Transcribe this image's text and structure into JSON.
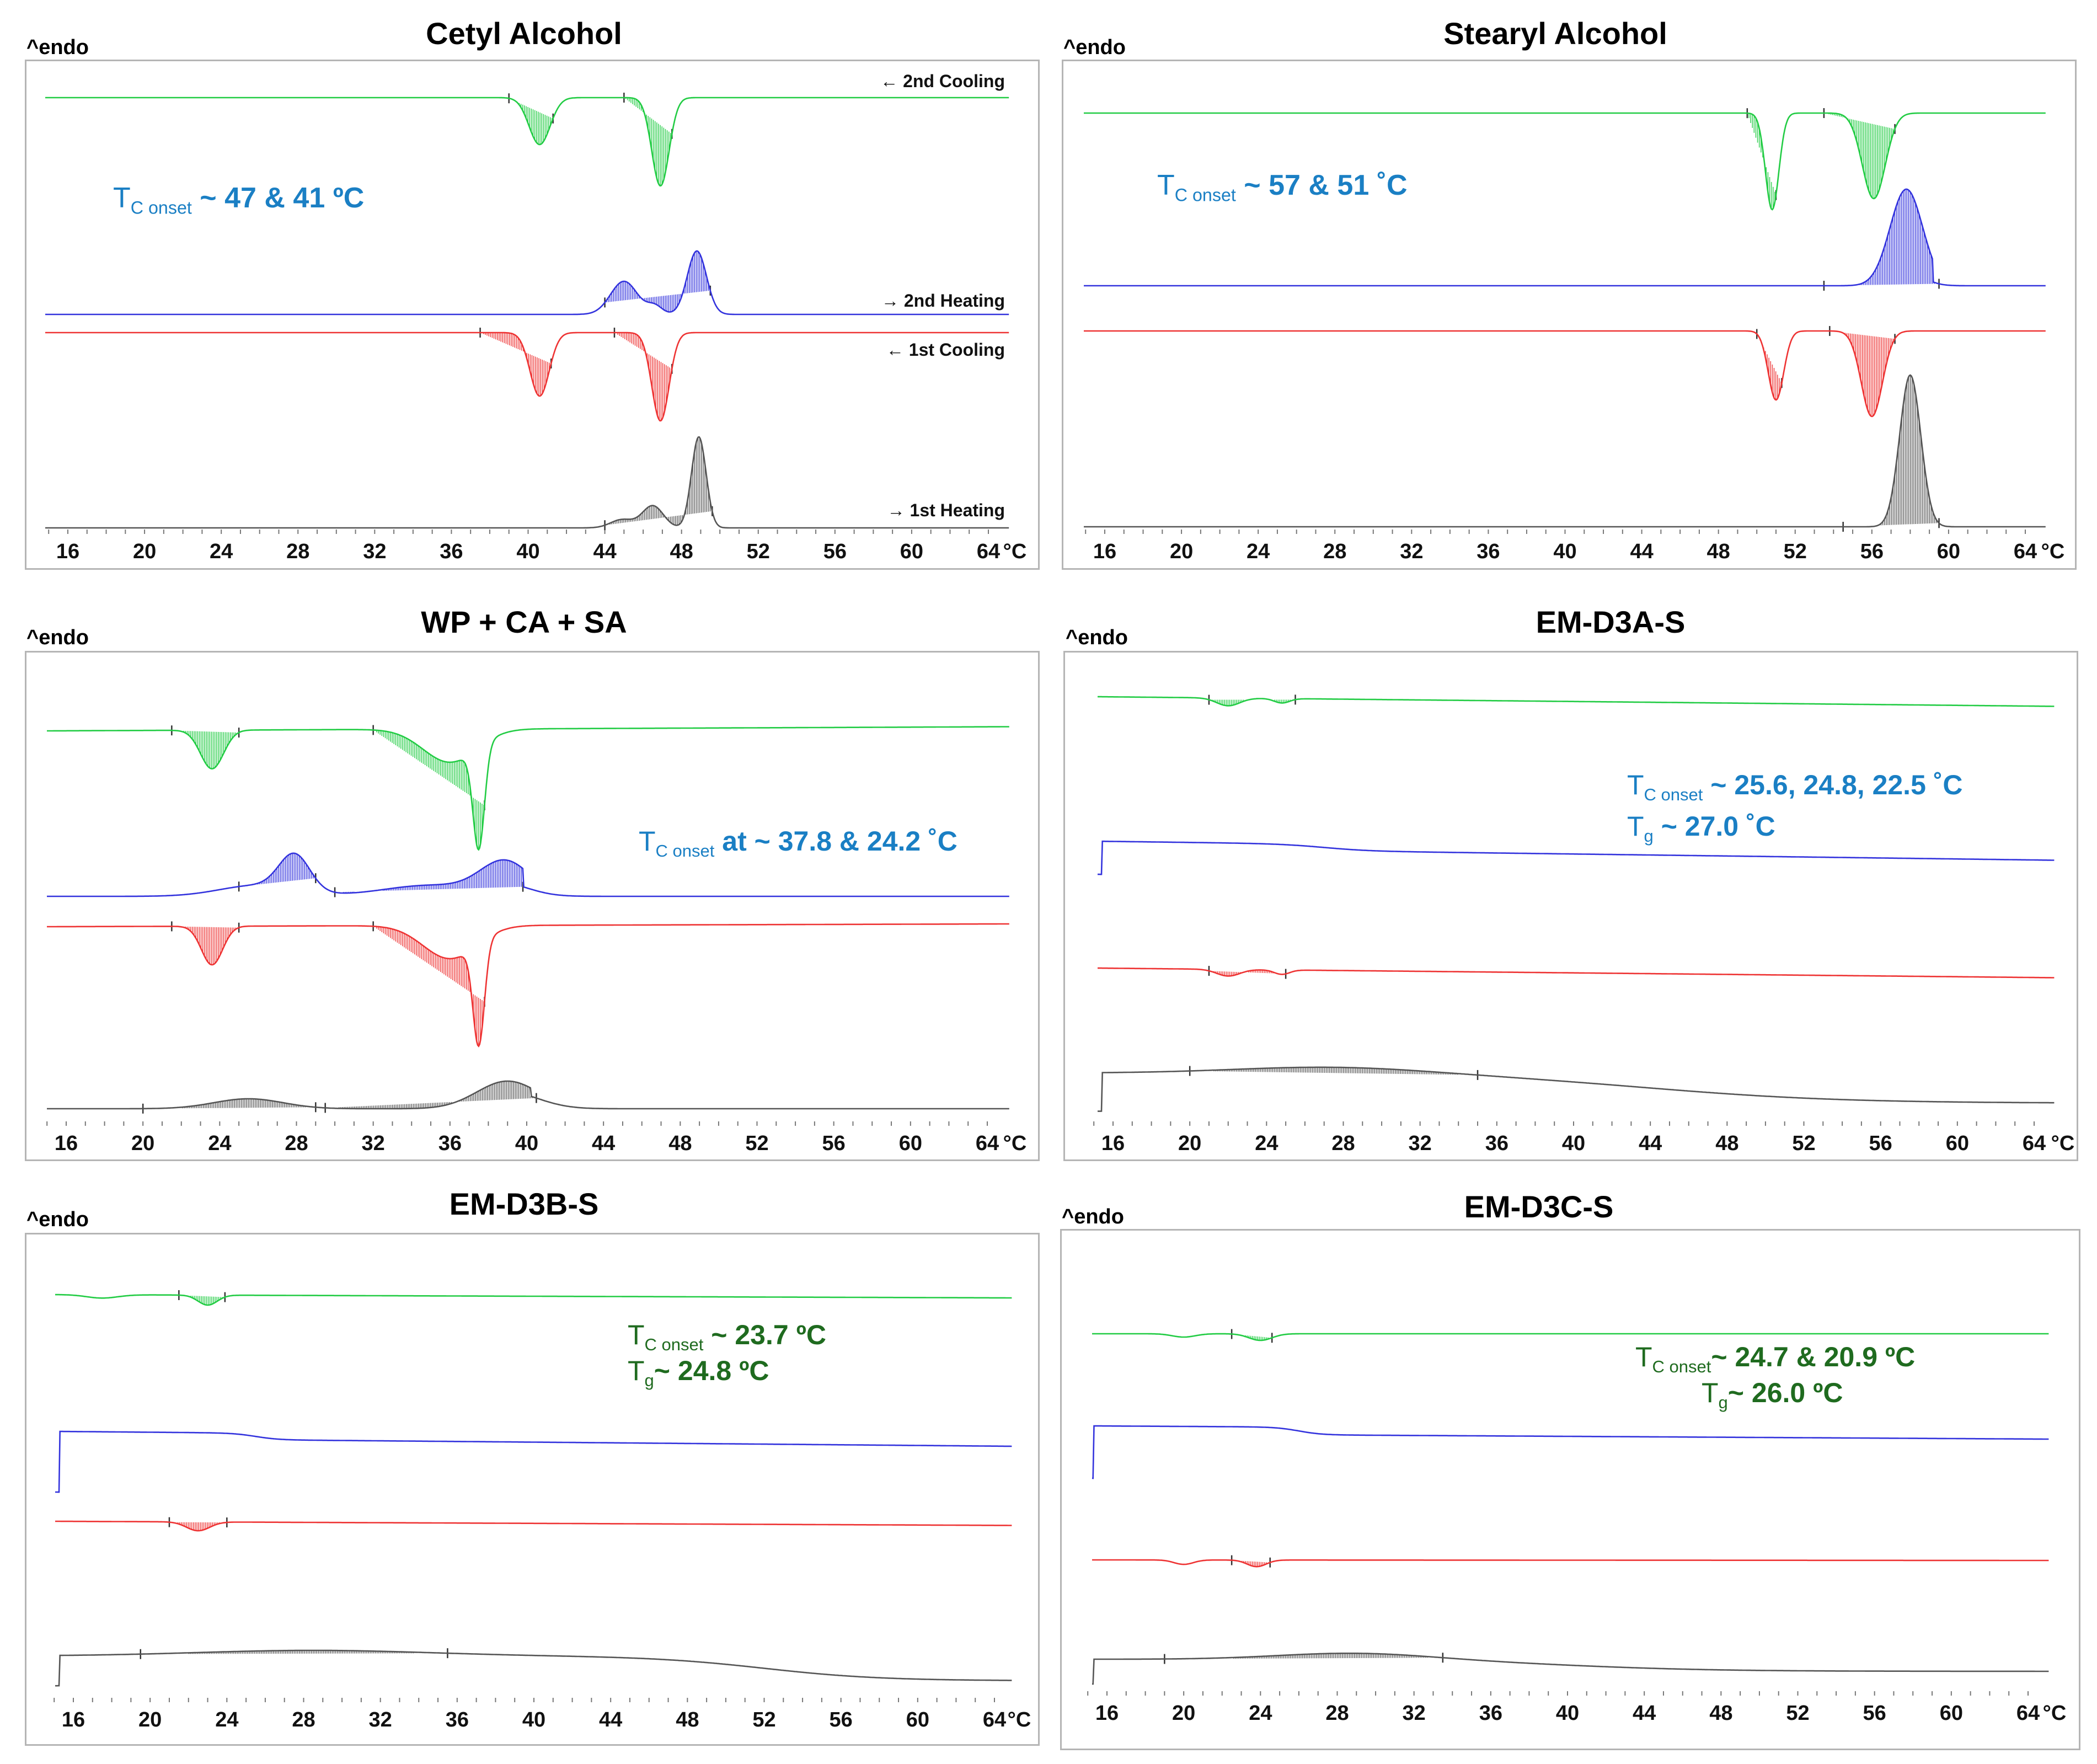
{
  "endo_label": "^endo",
  "unit": "°C",
  "colors": {
    "first_heating": "#555555",
    "first_cooling": "#ee3333",
    "second_heating": "#3333dd",
    "second_cooling": "#22cc44",
    "annotation_blue": "#1a7fc4",
    "annotation_green": "#1f6b1f"
  },
  "curve_labels": {
    "second_cooling": "2nd Cooling",
    "second_heating": "2nd Heating",
    "first_cooling": "1st Cooling",
    "first_heating": "1st Heating"
  },
  "chart_data": [
    {
      "type": "line",
      "title": "Cetyl Alcohol",
      "xlabel": "°C",
      "ylabel": "^endo",
      "xlim": [
        15,
        65
      ],
      "x_ticks": [
        16,
        20,
        24,
        28,
        32,
        36,
        40,
        44,
        48,
        52,
        56,
        60,
        64
      ],
      "annotation": {
        "sym": "T",
        "sub": "C onset",
        "text": " ~ 47 & 41 ºC"
      },
      "series": [
        {
          "name": "2nd Cooling",
          "peaks_C": [
            40.6,
            46.9
          ],
          "direction": "exo"
        },
        {
          "name": "2nd Heating",
          "peaks_C": [
            45.0,
            48.8
          ],
          "direction": "endo"
        },
        {
          "name": "1st Cooling",
          "peaks_C": [
            40.6,
            46.9
          ],
          "direction": "exo"
        },
        {
          "name": "1st Heating",
          "peaks_C": [
            46.5,
            48.9
          ],
          "direction": "endo"
        }
      ]
    },
    {
      "type": "line",
      "title": "Stearyl Alcohol",
      "xlabel": "°C",
      "ylabel": "^endo",
      "xlim": [
        15,
        65
      ],
      "x_ticks": [
        16,
        20,
        24,
        28,
        32,
        36,
        40,
        44,
        48,
        52,
        56,
        60,
        64
      ],
      "annotation": {
        "sym": "T",
        "sub": "C onset",
        "text": " ~ 57 & 51 ˚C"
      },
      "series": [
        {
          "name": "2nd Cooling",
          "peaks_C": [
            50.8,
            56.1
          ],
          "direction": "exo"
        },
        {
          "name": "2nd Heating",
          "peaks_C": [
            57.8
          ],
          "direction": "endo"
        },
        {
          "name": "1st Cooling",
          "peaks_C": [
            51.0,
            56.0
          ],
          "direction": "exo"
        },
        {
          "name": "1st Heating",
          "peaks_C": [
            58.0
          ],
          "direction": "endo"
        }
      ]
    },
    {
      "type": "line",
      "title": "WP + CA + SA",
      "xlabel": "°C",
      "ylabel": "^endo",
      "xlim": [
        15,
        65
      ],
      "x_ticks": [
        16,
        20,
        24,
        28,
        32,
        36,
        40,
        44,
        48,
        52,
        56,
        60,
        64
      ],
      "annotation": {
        "sym": "T",
        "sub": "C onset",
        "text": " at ~ 37.8 & 24.2 ˚C"
      },
      "series": [
        {
          "name": "2nd Cooling",
          "peaks_C": [
            23.6,
            37.5
          ],
          "direction": "exo"
        },
        {
          "name": "2nd Heating",
          "peaks_C": [
            27.9,
            38.9
          ],
          "direction": "endo"
        },
        {
          "name": "1st Cooling",
          "peaks_C": [
            23.6,
            37.5
          ],
          "direction": "exo"
        },
        {
          "name": "1st Heating",
          "peaks_C": [
            25.5,
            39.0
          ],
          "direction": "endo"
        }
      ]
    },
    {
      "type": "line",
      "title": "EM-D3A-S",
      "xlabel": "°C",
      "ylabel": "^endo",
      "xlim": [
        15,
        65
      ],
      "x_ticks": [
        16,
        20,
        24,
        28,
        32,
        36,
        40,
        44,
        48,
        52,
        56,
        60,
        64
      ],
      "annotation": {
        "sym": "T",
        "sub": "C onset",
        "text": "  ~ 25.6, 24.8, 22.5 ˚C",
        "sym2": "T",
        "sub2": "g",
        "text2": "  ~ 27.0 ˚C"
      },
      "series": [
        {
          "name": "2nd Cooling",
          "peaks_C": [
            22.0,
            24.8
          ],
          "direction": "exo"
        },
        {
          "name": "2nd Heating",
          "glass_transition_C": 27.0
        },
        {
          "name": "1st Cooling",
          "peaks_C": [
            22.0,
            24.8
          ],
          "direction": "exo"
        },
        {
          "name": "1st Heating",
          "broad_peak_C": 27.5
        }
      ]
    },
    {
      "type": "line",
      "title": "EM-D3B-S",
      "xlabel": "°C",
      "ylabel": "^endo",
      "xlim": [
        15,
        65
      ],
      "x_ticks": [
        16,
        20,
        24,
        28,
        32,
        36,
        40,
        44,
        48,
        52,
        56,
        60,
        64
      ],
      "annotation": {
        "sym": "T",
        "sub": "C onset",
        "text": "  ~ 23.7 ºC",
        "sym2": "T",
        "sub2": "g",
        "text2": "~ 24.8 ºC"
      },
      "series": [
        {
          "name": "2nd Cooling",
          "peaks_C": [
            23.0
          ],
          "direction": "exo"
        },
        {
          "name": "2nd Heating",
          "glass_transition_C": 24.8
        },
        {
          "name": "1st Cooling",
          "peaks_C": [
            23.0
          ],
          "direction": "exo"
        },
        {
          "name": "1st Heating",
          "broad_peak_C": 28.5
        }
      ]
    },
    {
      "type": "line",
      "title": "EM-D3C-S",
      "xlabel": "°C",
      "ylabel": "^endo",
      "xlim": [
        15,
        65
      ],
      "x_ticks": [
        16,
        20,
        24,
        28,
        32,
        36,
        40,
        44,
        48,
        52,
        56,
        60,
        64
      ],
      "annotation": {
        "sym": "T",
        "sub": "C onset",
        "text": "~ 24.7 & 20.9 ºC",
        "sym2": "T",
        "sub2": "g",
        "text2": "~ 26.0 ºC"
      },
      "series": [
        {
          "name": "2nd Cooling",
          "peaks_C": [
            20.5,
            24.0
          ],
          "direction": "exo"
        },
        {
          "name": "2nd Heating",
          "glass_transition_C": 26.0
        },
        {
          "name": "1st Cooling",
          "peaks_C": [
            20.0,
            24.0
          ],
          "direction": "exo"
        },
        {
          "name": "1st Heating",
          "broad_peak_C": 29.0
        }
      ]
    }
  ]
}
